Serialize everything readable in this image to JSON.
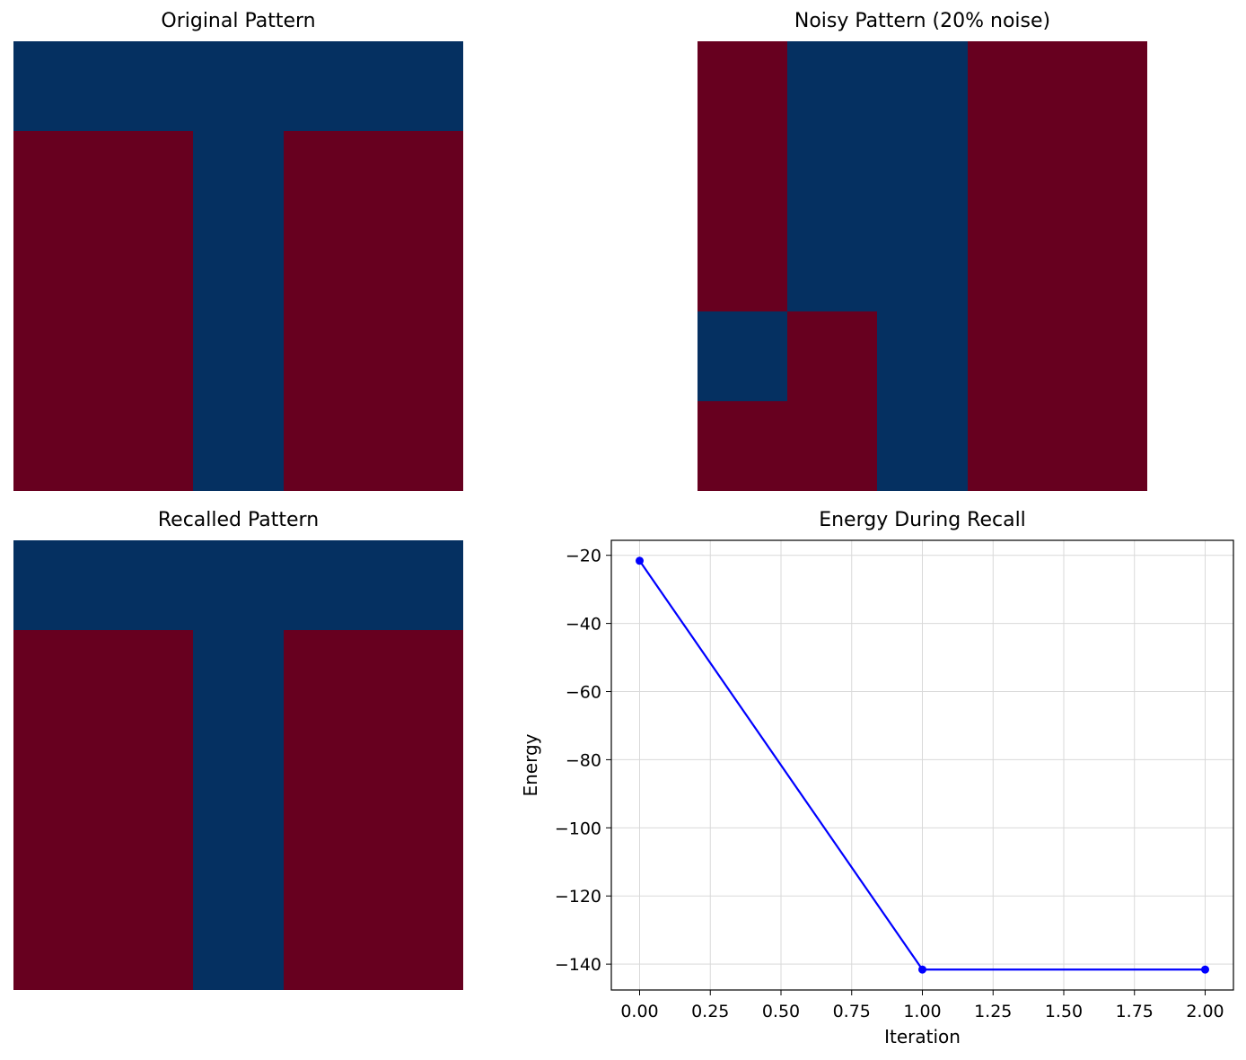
{
  "colors": {
    "positive": "#67001f",
    "negative": "#053061",
    "line": "#0000ff",
    "grid": "#d9d9d9"
  },
  "chart_data": [
    {
      "type": "heatmap",
      "title": "Original Pattern",
      "rows": 5,
      "cols": 5,
      "values": [
        [
          -1,
          -1,
          -1,
          -1,
          -1
        ],
        [
          1,
          1,
          -1,
          1,
          1
        ],
        [
          1,
          1,
          -1,
          1,
          1
        ],
        [
          1,
          1,
          -1,
          1,
          1
        ],
        [
          1,
          1,
          -1,
          1,
          1
        ]
      ],
      "axes": "off"
    },
    {
      "type": "heatmap",
      "title": "Noisy Pattern (20% noise)",
      "rows": 5,
      "cols": 5,
      "values": [
        [
          1,
          -1,
          -1,
          1,
          1
        ],
        [
          1,
          -1,
          -1,
          1,
          1
        ],
        [
          1,
          -1,
          -1,
          1,
          1
        ],
        [
          -1,
          1,
          -1,
          1,
          1
        ],
        [
          1,
          1,
          -1,
          1,
          1
        ]
      ],
      "axes": "off"
    },
    {
      "type": "heatmap",
      "title": "Recalled Pattern",
      "rows": 5,
      "cols": 5,
      "values": [
        [
          -1,
          -1,
          -1,
          -1,
          -1
        ],
        [
          1,
          1,
          -1,
          1,
          1
        ],
        [
          1,
          1,
          -1,
          1,
          1
        ],
        [
          1,
          1,
          -1,
          1,
          1
        ],
        [
          1,
          1,
          -1,
          1,
          1
        ]
      ],
      "axes": "off"
    },
    {
      "type": "line",
      "title": "Energy During Recall",
      "xlabel": "Iteration",
      "ylabel": "Energy",
      "x": [
        0,
        1,
        2
      ],
      "series": [
        {
          "values": [
            -21.6,
            -141.6,
            -141.6
          ]
        }
      ],
      "xlim": [
        -0.1,
        2.1
      ],
      "ylim": [
        -147.6,
        -15.6
      ],
      "xticks": [
        "0.00",
        "0.25",
        "0.50",
        "0.75",
        "1.00",
        "1.25",
        "1.50",
        "1.75",
        "2.00"
      ],
      "yticks": [
        "−20",
        "−40",
        "−60",
        "−80",
        "−100",
        "−120",
        "−140"
      ],
      "grid": true,
      "marker": "circle"
    }
  ]
}
